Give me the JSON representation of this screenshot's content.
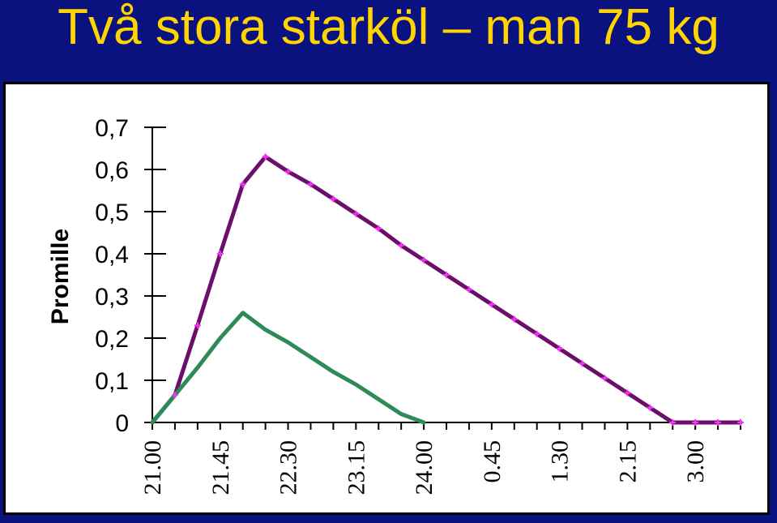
{
  "slide": {
    "title": "Två stora starköl – man 75 kg"
  },
  "colors": {
    "background": "#0a1280",
    "title": "#ffd400",
    "panel": "#ffffff",
    "series_purple": "#6a0f6a",
    "marker_magenta": "#ff33ff",
    "series_green": "#2e8b57"
  },
  "chart_data": {
    "type": "line",
    "title": "",
    "xlabel": "",
    "ylabel": "Promille",
    "ylim": [
      0,
      0.7
    ],
    "yticks": [
      0,
      0.1,
      0.2,
      0.3,
      0.4,
      0.5,
      0.6,
      0.7
    ],
    "ytick_labels": [
      "0",
      "0,1",
      "0,2",
      "0,3",
      "0,4",
      "0,5",
      "0,6",
      "0,7"
    ],
    "x_categories": [
      "21.00",
      "21.15",
      "21.30",
      "21.45",
      "22.00",
      "22.15",
      "22.30",
      "22.45",
      "23.00",
      "23.15",
      "23.30",
      "23.45",
      "24.00",
      "0.15",
      "0.30",
      "0.45",
      "1.00",
      "1.15",
      "1.30",
      "1.45",
      "2.00",
      "2.15",
      "2.30",
      "2.45",
      "3.00",
      "3.15",
      "3.30"
    ],
    "x_tick_labels": [
      "21.00",
      "21.45",
      "22.30",
      "23.15",
      "24.00",
      "0.45",
      "1.30",
      "2.15",
      "3.00"
    ],
    "grid": false,
    "legend": "none",
    "series": [
      {
        "color": "#6a0f6a",
        "marker_color": "#ff33ff",
        "markers": true,
        "values": [
          0.0,
          0.065,
          0.23,
          0.4,
          0.565,
          0.63,
          0.595,
          0.565,
          0.53,
          0.495,
          0.46,
          0.42,
          0.385,
          0.35,
          0.315,
          0.28,
          0.245,
          0.21,
          0.175,
          0.14,
          0.105,
          0.07,
          0.035,
          0.0,
          0.0,
          0.0,
          0.0
        ]
      },
      {
        "color": "#2e8b57",
        "markers": false,
        "values": [
          0.0,
          0.065,
          0.13,
          0.2,
          0.26,
          0.22,
          0.19,
          0.155,
          0.12,
          0.09,
          0.055,
          0.02,
          0.0
        ]
      }
    ]
  }
}
